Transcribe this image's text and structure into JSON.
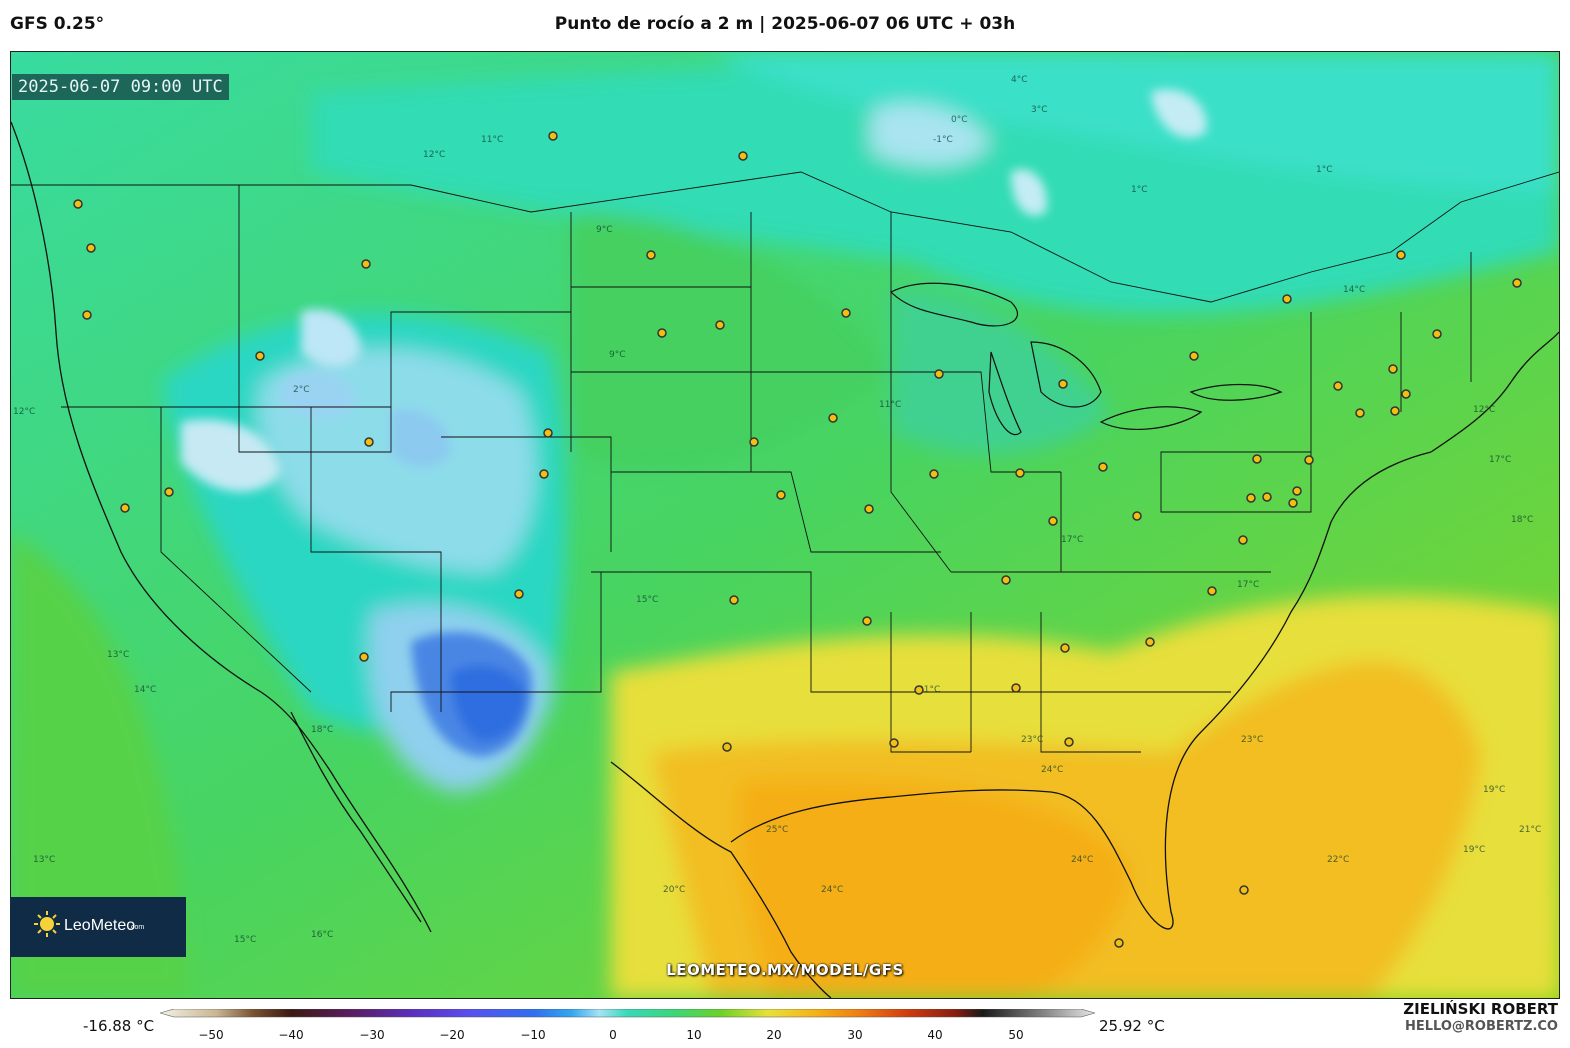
{
  "header": {
    "model": "GFS 0.25°",
    "title": "Punto de rocío a 2 m | 2025-06-07 06 UTC + 03h"
  },
  "map": {
    "valid_time": "2025-06-07 09:00 UTC",
    "watermark": "LEOMETEO.MX/MODEL/GFS",
    "logo_text": "LeoMeteo",
    "logo_suffix": ".com",
    "contour_labels": [
      "-1°C",
      "0°C",
      "1°C",
      "1°C",
      "2°C",
      "3°C",
      "4°C",
      "9°C",
      "9°C",
      "11°C",
      "11°C",
      "12°C",
      "12°C",
      "12°C",
      "13°C",
      "13°C",
      "14°C",
      "14°C",
      "15°C",
      "15°C",
      "16°C",
      "17°C",
      "17°C",
      "17°C",
      "18°C",
      "18°C",
      "19°C",
      "19°C",
      "20°C",
      "21°C",
      "21°C",
      "22°C",
      "23°C",
      "23°C",
      "24°C",
      "24°C",
      "24°C",
      "25°C"
    ]
  },
  "colors": {
    "cold_blue": "#2f7de0",
    "pale_blue": "#b8e4f4",
    "teal": "#34d7a6",
    "green": "#3fd36a",
    "lime": "#7dd323",
    "yellow": "#e9e13a",
    "orange": "#f4b317",
    "city_marker": "#f2c012"
  },
  "legend": {
    "min_label": "-16.88 °C",
    "max_label": "25.92 °C",
    "ticks": [
      "−50",
      "−40",
      "−30",
      "−20",
      "−10",
      "0",
      "10",
      "20",
      "30",
      "40",
      "50"
    ]
  },
  "credits": {
    "author": "ZIELIŃSKI ROBERT",
    "email": "HELLO@ROBERTZ.CO"
  }
}
